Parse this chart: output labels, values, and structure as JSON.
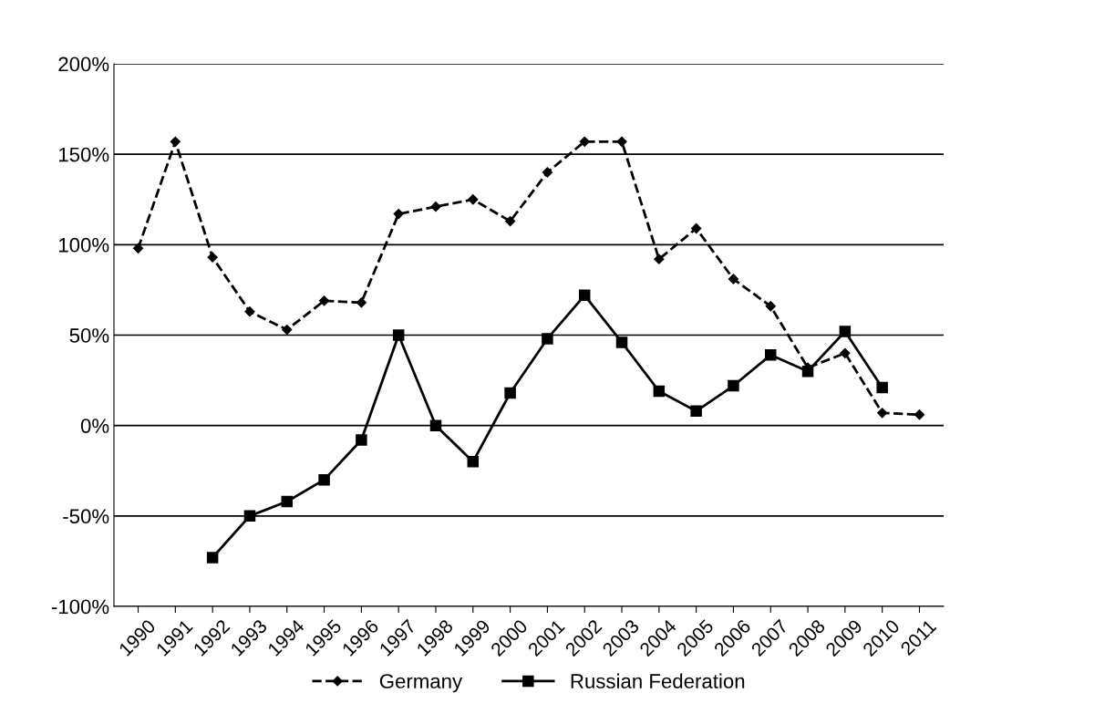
{
  "chart_data": {
    "type": "line",
    "categories": [
      "1990",
      "1991",
      "1992",
      "1993",
      "1994",
      "1995",
      "1996",
      "1997",
      "1998",
      "1999",
      "2000",
      "2001",
      "2002",
      "2003",
      "2004",
      "2005",
      "2006",
      "2007",
      "2008",
      "2009",
      "2010",
      "2011"
    ],
    "series": [
      {
        "name": "Germany",
        "color": "#000000",
        "marker": "diamond",
        "line_style": "dashed",
        "values": [
          98,
          157,
          93,
          63,
          53,
          69,
          68,
          117,
          121,
          125,
          113,
          140,
          157,
          157,
          92,
          109,
          81,
          66,
          32,
          40,
          7,
          6
        ]
      },
      {
        "name": "Russian Federation",
        "color": "#000000",
        "marker": "square",
        "line_style": "solid",
        "values": [
          null,
          null,
          -73,
          -50,
          -42,
          -30,
          -8,
          50,
          0,
          -20,
          18,
          48,
          72,
          46,
          19,
          8,
          22,
          39,
          30,
          52,
          21,
          null
        ]
      }
    ],
    "ylim": [
      -100,
      200
    ],
    "yticks": [
      {
        "value": -100,
        "label": "-100%"
      },
      {
        "value": -50,
        "label": "-50%"
      },
      {
        "value": 0,
        "label": "0%"
      },
      {
        "value": 50,
        "label": "50%"
      },
      {
        "value": 100,
        "label": "100%"
      },
      {
        "value": 150,
        "label": "150%"
      },
      {
        "value": 200,
        "label": "200%"
      }
    ],
    "grid": "y",
    "legend": "bottom"
  }
}
